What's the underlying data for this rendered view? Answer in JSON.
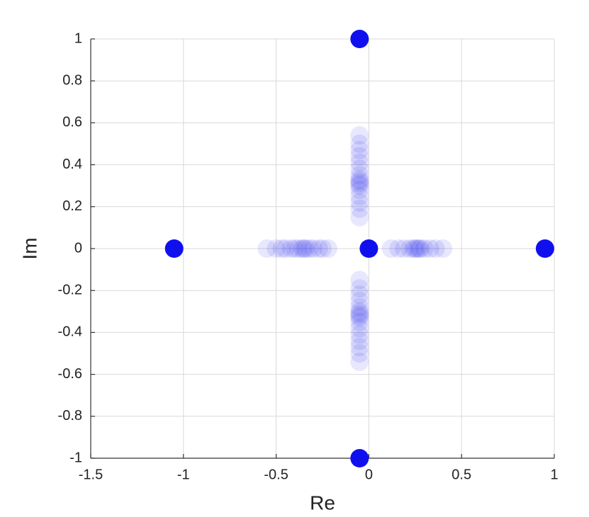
{
  "chart_data": {
    "type": "scatter",
    "x_label": "Re",
    "y_label": "Im",
    "xlim": [
      -1.5,
      1
    ],
    "ylim": [
      -1,
      1
    ],
    "xticks": [
      -1.5,
      -1,
      -0.5,
      0,
      0.5,
      1
    ],
    "yticks": [
      -1,
      -0.8,
      -0.6,
      -0.4,
      -0.2,
      0,
      0.2,
      0.4,
      0.6,
      0.8,
      1
    ],
    "grid": true,
    "series": [
      {
        "color": "#1010ee",
        "alpha": 0.1,
        "x": [
          -0.55,
          -0.5,
          -0.47,
          -0.45,
          -0.42,
          -0.4,
          -0.38,
          -0.36,
          -0.35,
          -0.34,
          -0.32,
          -0.3,
          -0.27,
          -0.25,
          -0.22,
          0.12,
          0.16,
          0.19,
          0.22,
          0.24,
          0.25,
          0.26,
          0.27,
          0.28,
          0.3,
          0.33,
          0.36,
          0.4,
          -0.05,
          -0.05,
          -0.05,
          -0.05,
          -0.05,
          -0.05,
          -0.05,
          -0.05,
          -0.05,
          -0.05,
          -0.05,
          -0.05,
          -0.05,
          -0.05,
          -0.05,
          -0.05,
          -0.05,
          -0.05,
          -0.05,
          -0.05,
          -0.05,
          -0.05,
          -0.05,
          -0.05,
          -0.05,
          -0.05,
          -0.05,
          -0.05,
          -0.05,
          -0.05,
          -0.05,
          -0.05
        ],
        "y": [
          0,
          0,
          0,
          0,
          0,
          0,
          0,
          0,
          0,
          0,
          0,
          0,
          0,
          0,
          0,
          0,
          0,
          0,
          0,
          0,
          0,
          0,
          0,
          0,
          0,
          0,
          0,
          0,
          0.54,
          0.5,
          0.47,
          0.44,
          0.41,
          0.38,
          0.35,
          0.33,
          0.32,
          0.31,
          0.3,
          0.28,
          0.25,
          0.22,
          0.19,
          0.15,
          -0.54,
          -0.5,
          -0.47,
          -0.44,
          -0.41,
          -0.38,
          -0.35,
          -0.33,
          -0.32,
          -0.31,
          -0.3,
          -0.28,
          -0.25,
          -0.22,
          -0.19,
          -0.15
        ]
      },
      {
        "color": "#1010ee",
        "alpha": 1,
        "x": [
          -0.05,
          -0.05,
          -1.05,
          0.95,
          0
        ],
        "y": [
          1,
          -1,
          0,
          0,
          0
        ]
      }
    ]
  }
}
